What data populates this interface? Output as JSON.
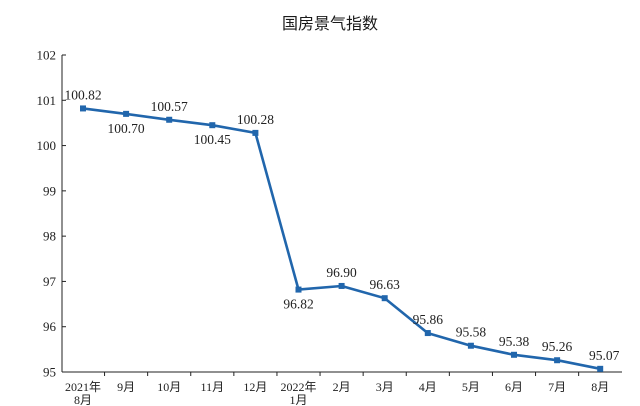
{
  "chart_data": {
    "type": "line",
    "title": "国房景气指数",
    "categories": [
      [
        "2021年",
        "8月"
      ],
      [
        "9月"
      ],
      [
        "10月"
      ],
      [
        "11月"
      ],
      [
        "12月"
      ],
      [
        "2022年",
        "1月"
      ],
      [
        "2月"
      ],
      [
        "3月"
      ],
      [
        "4月"
      ],
      [
        "5月"
      ],
      [
        "6月"
      ],
      [
        "7月"
      ],
      [
        "8月"
      ]
    ],
    "series": [
      {
        "name": "",
        "values": [
          100.82,
          100.7,
          100.57,
          100.45,
          100.28,
          96.82,
          96.9,
          96.63,
          95.86,
          95.58,
          95.38,
          95.26,
          95.07
        ],
        "labels": [
          "100.82",
          "100.70",
          "100.57",
          "100.45",
          "100.28",
          "96.82",
          "96.90",
          "96.63",
          "95.86",
          "95.58",
          "95.38",
          "95.26",
          "95.07"
        ],
        "label_side": [
          "above",
          "below",
          "above",
          "below",
          "above",
          "below",
          "above",
          "above",
          "above",
          "above",
          "above",
          "above",
          "above"
        ]
      }
    ],
    "ylim": [
      95,
      102
    ],
    "yticks": [
      95,
      96,
      97,
      98,
      99,
      100,
      101,
      102
    ],
    "xlabel": "",
    "ylabel": "",
    "grid": false,
    "line_color": "#2166ac"
  }
}
